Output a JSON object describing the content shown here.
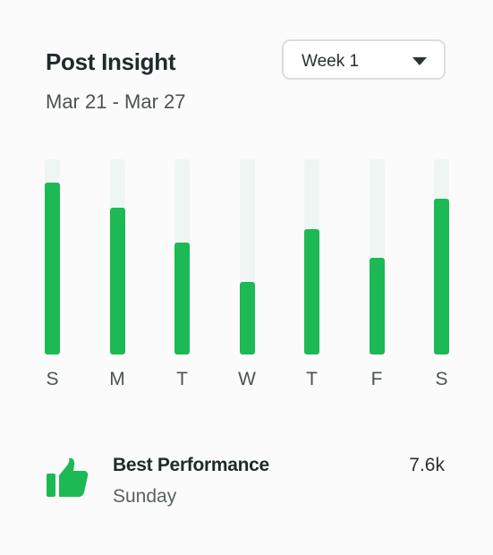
{
  "header": {
    "title": "Post Insight",
    "date_range": "Mar 21 - Mar 27",
    "week_select": {
      "selected": "Week 1"
    }
  },
  "chart_data": {
    "type": "bar",
    "categories": [
      "S",
      "M",
      "T",
      "W",
      "T",
      "F",
      "S"
    ],
    "values": [
      0.88,
      0.75,
      0.575,
      0.37,
      0.64,
      0.495,
      0.8
    ],
    "ylim": [
      0,
      1
    ],
    "colors": {
      "bar": "#1db954",
      "track": "#eef6f4"
    }
  },
  "best_performance": {
    "title": "Best Performance",
    "day": "Sunday",
    "value": "7.6k",
    "icon": "thumbs-up-icon",
    "icon_color": "#1db954"
  }
}
